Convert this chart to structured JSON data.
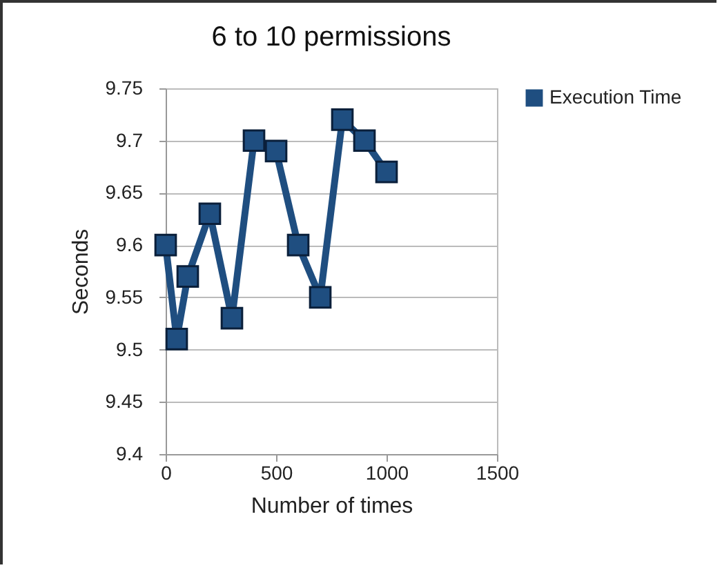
{
  "chart_data": {
    "type": "line",
    "title": "6 to 10 permissions",
    "xlabel": "Number of times",
    "ylabel": "Seconds",
    "x": [
      0,
      50,
      100,
      200,
      300,
      400,
      500,
      600,
      700,
      800,
      900,
      1000
    ],
    "series": [
      {
        "name": "Execution Time",
        "color": "#1f4e80",
        "values": [
          9.6,
          9.51,
          9.57,
          9.63,
          9.53,
          9.7,
          9.69,
          9.6,
          9.55,
          9.72,
          9.7,
          9.67
        ]
      }
    ],
    "xlim": [
      0,
      1500
    ],
    "xticks": [
      0,
      500,
      1000,
      1500
    ],
    "ylim": [
      9.4,
      9.75
    ],
    "yticks": [
      9.4,
      9.45,
      9.5,
      9.55,
      9.6,
      9.65,
      9.7,
      9.75
    ],
    "grid": "y",
    "legend": "right",
    "marker": "square",
    "line_style": "solid"
  }
}
